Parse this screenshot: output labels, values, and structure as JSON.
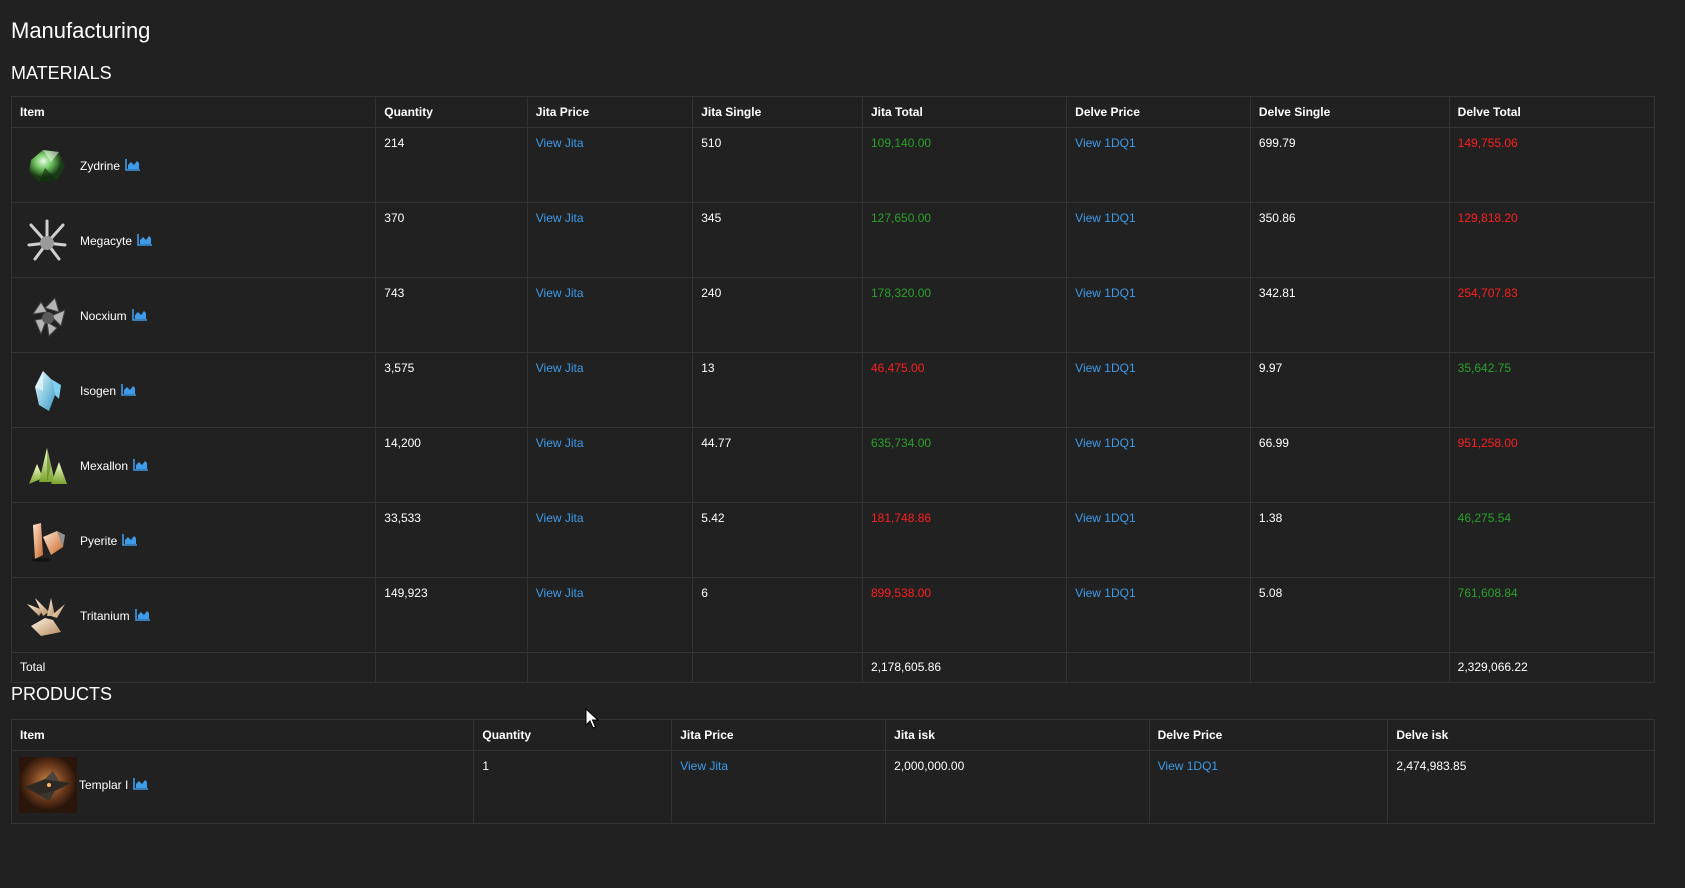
{
  "page": {
    "title": "Manufacturing"
  },
  "materials": {
    "section_title": "MATERIALS",
    "columns": [
      "Item",
      "Quantity",
      "Jita Price",
      "Jita Single",
      "Jita Total",
      "Delve Price",
      "Delve Single",
      "Delve Total"
    ],
    "rows": [
      {
        "item": "Zydrine",
        "icon": "zydrine-mineral-icon",
        "quantity": "214",
        "jita_link": "View Jita",
        "jita_single": "510",
        "jita_total": "109,140.00",
        "jita_total_color": "#2aa12a",
        "delve_link": "View 1DQ1",
        "delve_single": "699.79",
        "delve_total": "149,755.06",
        "delve_total_color": "#ff1f1f"
      },
      {
        "item": "Megacyte",
        "icon": "megacyte-mineral-icon",
        "quantity": "370",
        "jita_link": "View Jita",
        "jita_single": "345",
        "jita_total": "127,650.00",
        "jita_total_color": "#2aa12a",
        "delve_link": "View 1DQ1",
        "delve_single": "350.86",
        "delve_total": "129,818.20",
        "delve_total_color": "#ff1f1f"
      },
      {
        "item": "Nocxium",
        "icon": "nocxium-mineral-icon",
        "quantity": "743",
        "jita_link": "View Jita",
        "jita_single": "240",
        "jita_total": "178,320.00",
        "jita_total_color": "#2aa12a",
        "delve_link": "View 1DQ1",
        "delve_single": "342.81",
        "delve_total": "254,707.83",
        "delve_total_color": "#ff1f1f"
      },
      {
        "item": "Isogen",
        "icon": "isogen-mineral-icon",
        "quantity": "3,575",
        "jita_link": "View Jita",
        "jita_single": "13",
        "jita_total": "46,475.00",
        "jita_total_color": "#ff1f1f",
        "delve_link": "View 1DQ1",
        "delve_single": "9.97",
        "delve_total": "35,642.75",
        "delve_total_color": "#2aa12a"
      },
      {
        "item": "Mexallon",
        "icon": "mexallon-mineral-icon",
        "quantity": "14,200",
        "jita_link": "View Jita",
        "jita_single": "44.77",
        "jita_total": "635,734.00",
        "jita_total_color": "#2aa12a",
        "delve_link": "View 1DQ1",
        "delve_single": "66.99",
        "delve_total": "951,258.00",
        "delve_total_color": "#ff1f1f"
      },
      {
        "item": "Pyerite",
        "icon": "pyerite-mineral-icon",
        "quantity": "33,533",
        "jita_link": "View Jita",
        "jita_single": "5.42",
        "jita_total": "181,748.86",
        "jita_total_color": "#ff1f1f",
        "delve_link": "View 1DQ1",
        "delve_single": "1.38",
        "delve_total": "46,275.54",
        "delve_total_color": "#2aa12a"
      },
      {
        "item": "Tritanium",
        "icon": "tritanium-mineral-icon",
        "quantity": "149,923",
        "jita_link": "View Jita",
        "jita_single": "6",
        "jita_total": "899,538.00",
        "jita_total_color": "#ff1f1f",
        "delve_link": "View 1DQ1",
        "delve_single": "5.08",
        "delve_total": "761,608.84",
        "delve_total_color": "#2aa12a"
      }
    ],
    "total": {
      "label": "Total",
      "jita_total": "2,178,605.86",
      "delve_total": "2,329,066.22"
    }
  },
  "products": {
    "section_title": "PRODUCTS",
    "columns": [
      "Item",
      "Quantity",
      "Jita Price",
      "Jita isk",
      "Delve Price",
      "Delve isk"
    ],
    "rows": [
      {
        "item": "Templar I",
        "icon": "templar-fighter-thumbnail",
        "quantity": "1",
        "jita_link": "View Jita",
        "jita_isk": "2,000,000.00",
        "delve_link": "View 1DQ1",
        "delve_isk": "2,474,983.85"
      }
    ]
  },
  "colors": {
    "background": "#212121",
    "link": "#3d9be9",
    "positive": "#2aa12a",
    "negative": "#ff1f1f",
    "border": "#333333"
  },
  "icons": {
    "market_history": "area-chart-icon",
    "cursor": "mouse-pointer-icon"
  }
}
